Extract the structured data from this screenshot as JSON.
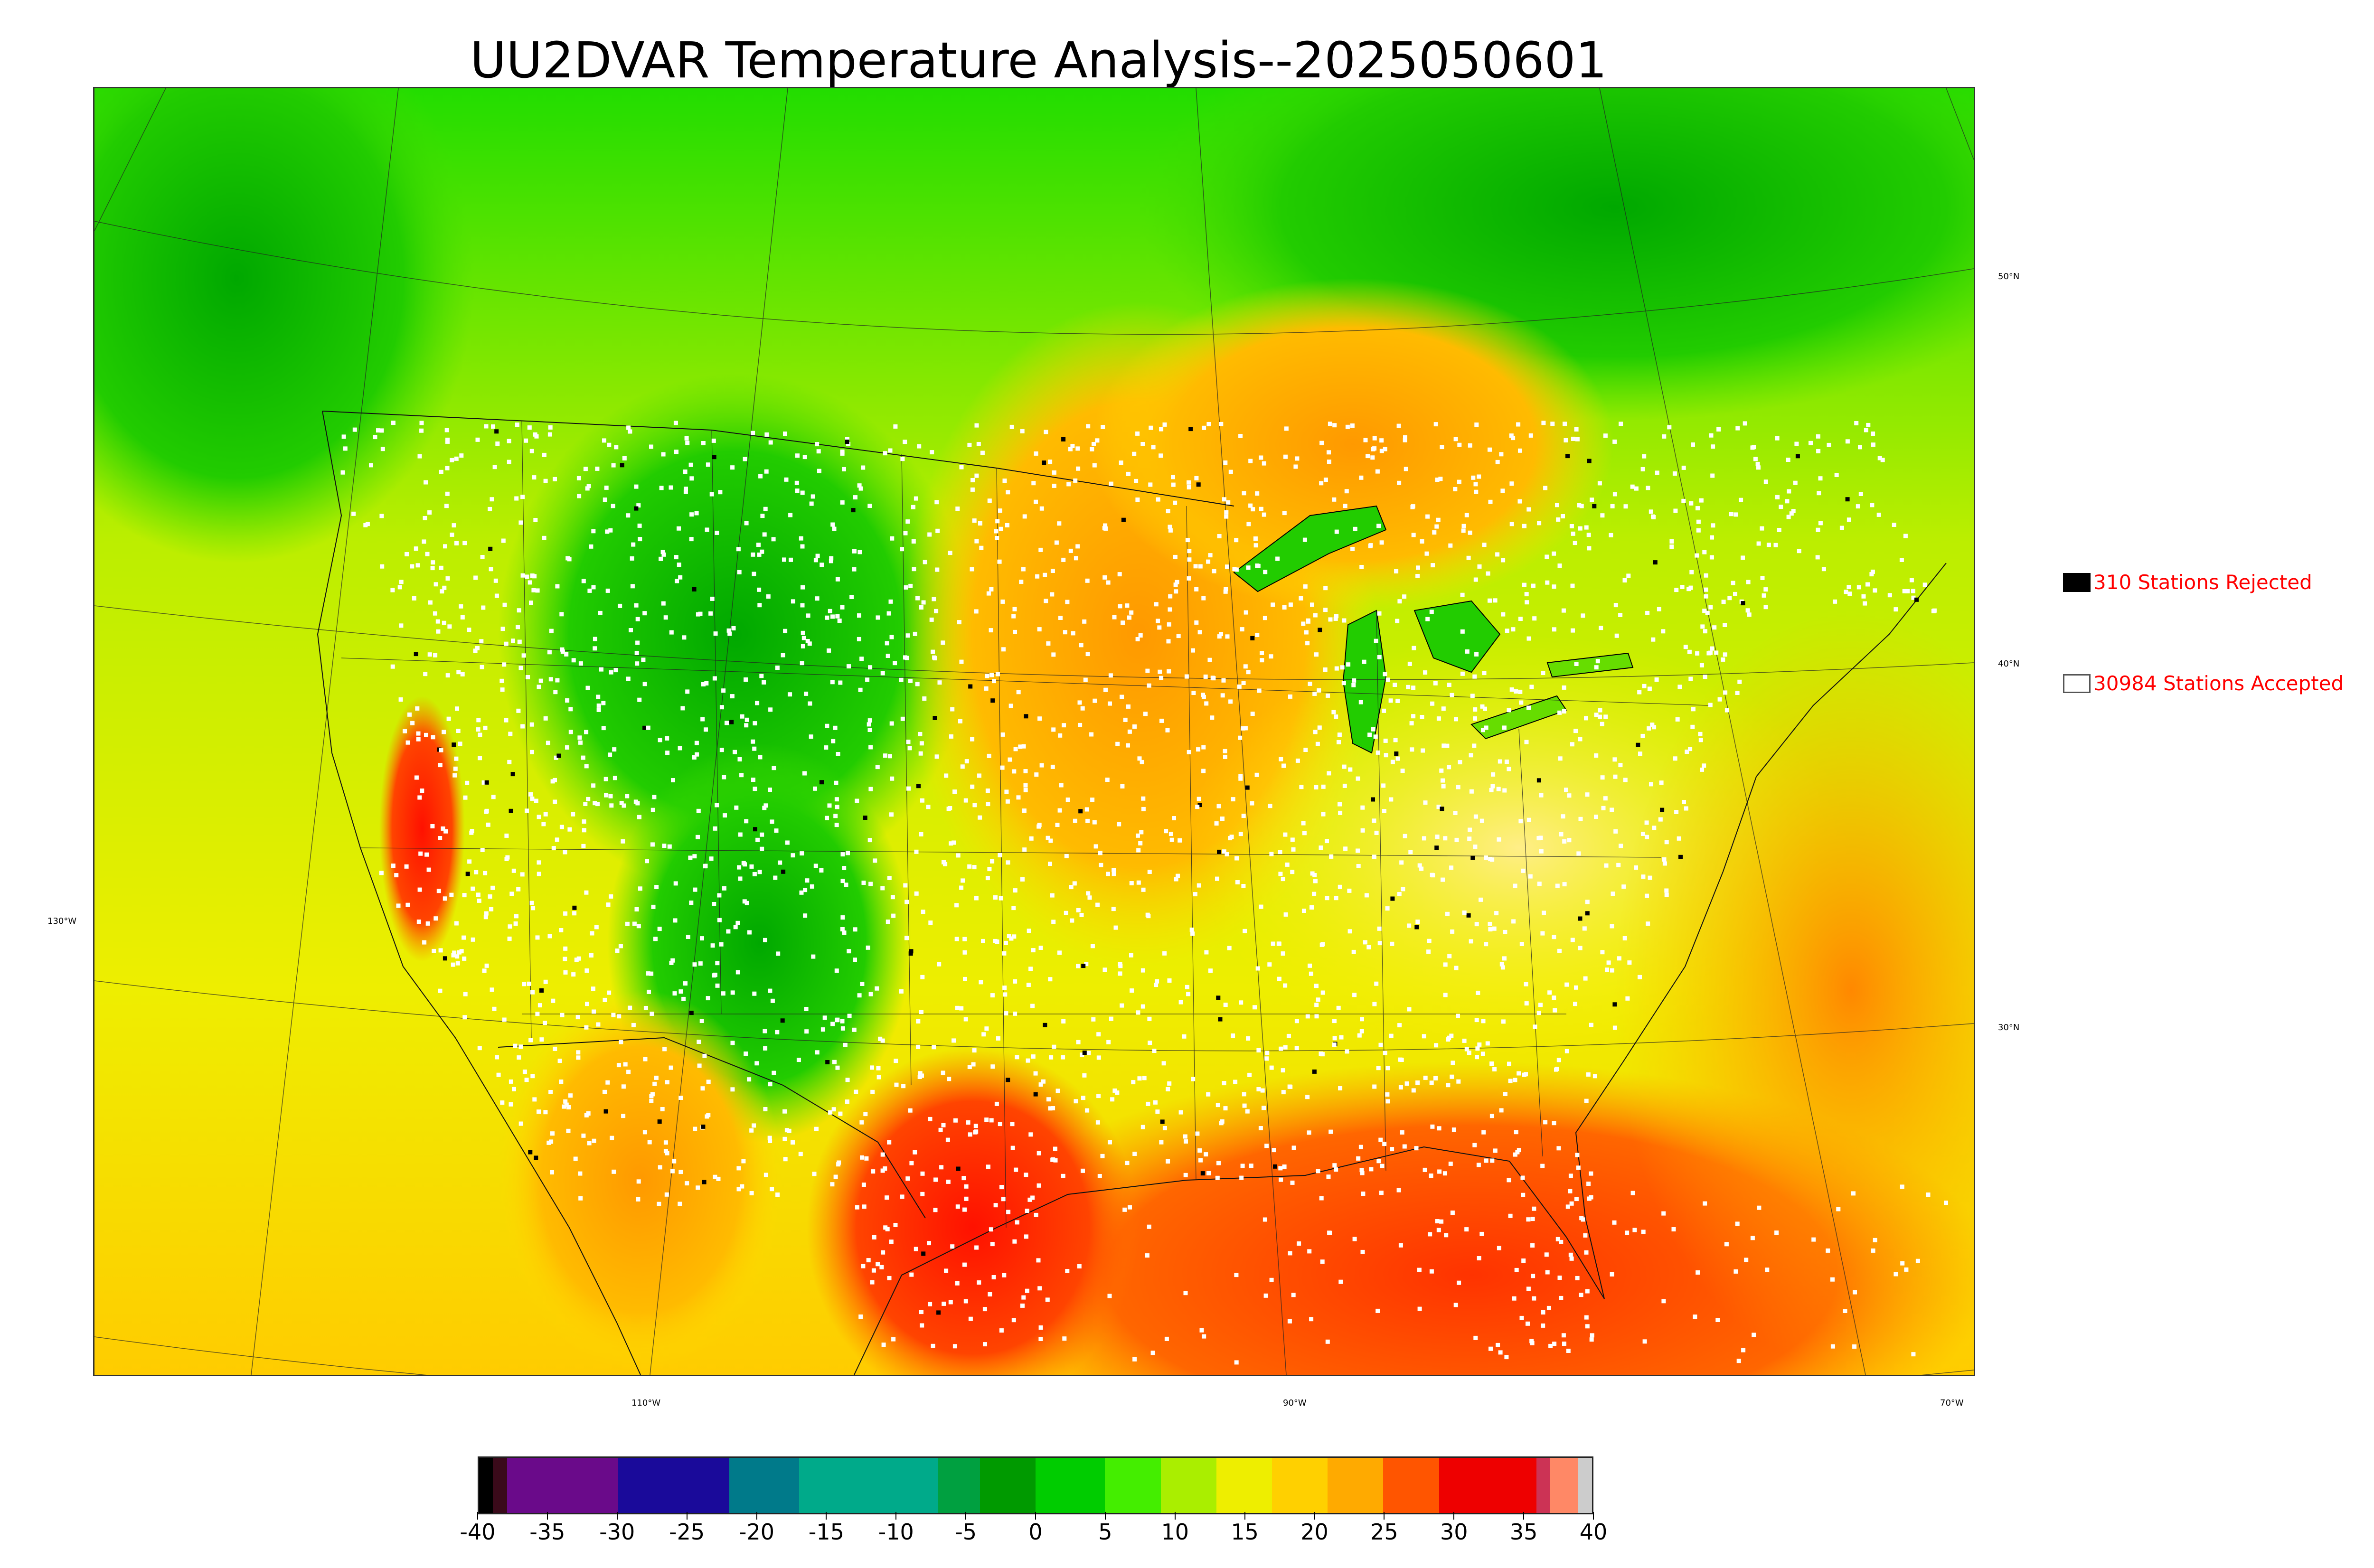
{
  "title": "UU2DVAR Temperature Analysis--2025050601",
  "map": {
    "lat_labels": [
      "50°N",
      "40°N",
      "30°N",
      "130°W"
    ],
    "lon_labels": [
      "110°W",
      "90°W",
      "70°W"
    ],
    "temperature_field_colors": {
      "cold": "#00c800",
      "cool": "#66ee00",
      "mild": "#ccee00",
      "warm": "#ffcc00",
      "hot": "#ff8800",
      "very_hot": "#ff2200"
    },
    "station_marker_colors": {
      "accepted": "#ffffff",
      "rejected": "#000000"
    }
  },
  "legend": {
    "rejected": {
      "label": "310 Stations Rejected",
      "swatch_color": "#000000"
    },
    "accepted": {
      "label": "30984 Stations Accepted",
      "swatch_color": "#ffffff"
    }
  },
  "colorbar": {
    "tick_labels": [
      "-40",
      "-35",
      "-30",
      "-25",
      "-20",
      "-15",
      "-10",
      "-5",
      "0",
      "5",
      "10",
      "15",
      "20",
      "25",
      "30",
      "35",
      "40"
    ],
    "range": [
      -40,
      40
    ],
    "segments": [
      {
        "from": -40,
        "to": -39,
        "color": "#000000"
      },
      {
        "from": -39,
        "to": -38,
        "color": "#3a0a1a"
      },
      {
        "from": -38,
        "to": -30,
        "color": "#6a0a8a"
      },
      {
        "from": -30,
        "to": -22,
        "color": "#1a0a9a"
      },
      {
        "from": -22,
        "to": -17,
        "color": "#007a8a"
      },
      {
        "from": -17,
        "to": -7,
        "color": "#00aa8a"
      },
      {
        "from": -7,
        "to": -4,
        "color": "#00a040"
      },
      {
        "from": -4,
        "to": 0,
        "color": "#009a00"
      },
      {
        "from": 0,
        "to": 5,
        "color": "#00cc00"
      },
      {
        "from": 5,
        "to": 9,
        "color": "#44ee00"
      },
      {
        "from": 9,
        "to": 13,
        "color": "#aaee00"
      },
      {
        "from": 13,
        "to": 17,
        "color": "#eeee00"
      },
      {
        "from": 17,
        "to": 21,
        "color": "#ffd000"
      },
      {
        "from": 21,
        "to": 25,
        "color": "#ffaa00"
      },
      {
        "from": 25,
        "to": 29,
        "color": "#ff5500"
      },
      {
        "from": 29,
        "to": 36,
        "color": "#ee0000"
      },
      {
        "from": 36,
        "to": 37,
        "color": "#cc3355"
      },
      {
        "from": 37,
        "to": 39,
        "color": "#ff8866"
      },
      {
        "from": 39,
        "to": 40,
        "color": "#cccccc"
      }
    ]
  }
}
